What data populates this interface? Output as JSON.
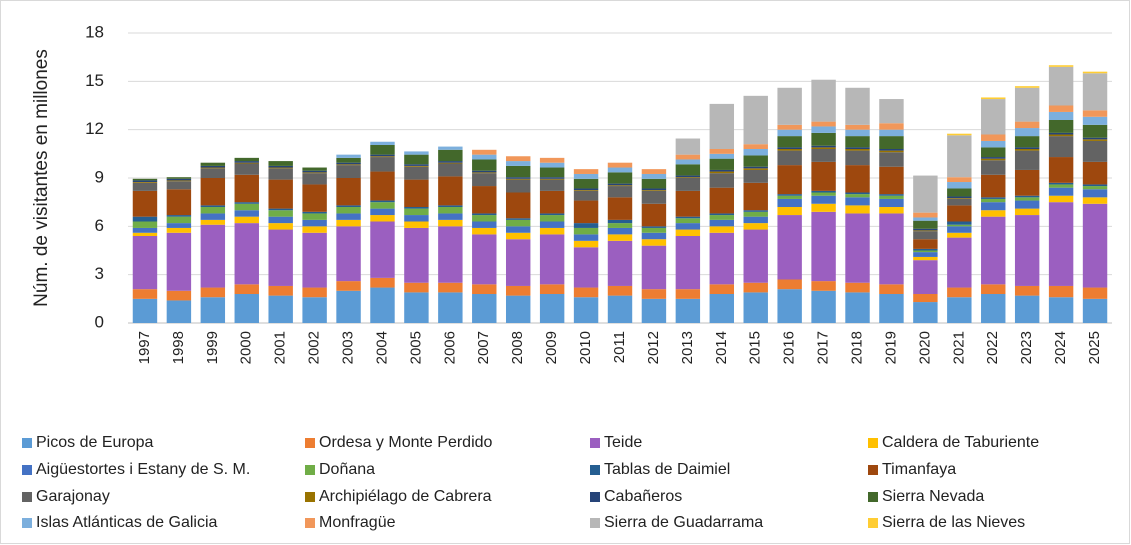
{
  "chart_data": {
    "type": "bar",
    "stacked": true,
    "y_label": "Núm. de visitantes en millones",
    "categories": [
      "1997",
      "1998",
      "1999",
      "2000",
      "2001",
      "2002",
      "2003",
      "2004",
      "2005",
      "2006",
      "2007",
      "2008",
      "2009",
      "2010",
      "2011",
      "2012",
      "2013",
      "2014",
      "2015",
      "2016",
      "2017",
      "2018",
      "2019",
      "2020",
      "2021",
      "2022",
      "2023",
      "2024",
      "2025"
    ],
    "ylim": [
      0,
      18
    ],
    "yticks": [
      0,
      3,
      6,
      9,
      12,
      15,
      18
    ],
    "grid": true,
    "legend": "bottom",
    "series": [
      {
        "name": "Picos de Europa",
        "color": "#5b9bd5",
        "values": [
          1.5,
          1.4,
          1.6,
          1.8,
          1.7,
          1.6,
          2.0,
          2.2,
          1.9,
          1.9,
          1.8,
          1.7,
          1.8,
          1.6,
          1.7,
          1.5,
          1.5,
          1.8,
          1.9,
          2.1,
          2.0,
          1.9,
          1.8,
          1.3,
          1.6,
          1.8,
          1.7,
          1.6,
          1.5
        ]
      },
      {
        "name": "Ordesa y Monte Perdido",
        "color": "#ed7d31",
        "values": [
          0.6,
          0.6,
          0.6,
          0.6,
          0.6,
          0.6,
          0.6,
          0.6,
          0.6,
          0.6,
          0.6,
          0.6,
          0.6,
          0.6,
          0.6,
          0.6,
          0.6,
          0.6,
          0.6,
          0.6,
          0.6,
          0.6,
          0.6,
          0.5,
          0.6,
          0.6,
          0.6,
          0.7,
          0.7
        ]
      },
      {
        "name": "Teide",
        "color": "#9b5fc0",
        "values": [
          3.3,
          3.6,
          3.9,
          3.8,
          3.5,
          3.4,
          3.4,
          3.5,
          3.4,
          3.5,
          3.1,
          2.9,
          3.1,
          2.5,
          2.8,
          2.7,
          3.3,
          3.2,
          3.3,
          4.0,
          4.3,
          4.3,
          4.4,
          2.1,
          3.1,
          4.2,
          4.4,
          5.2,
          5.2
        ]
      },
      {
        "name": "Caldera de Taburiente",
        "color": "#ffc000",
        "values": [
          0.2,
          0.3,
          0.3,
          0.4,
          0.4,
          0.4,
          0.4,
          0.4,
          0.4,
          0.4,
          0.4,
          0.4,
          0.4,
          0.4,
          0.4,
          0.4,
          0.4,
          0.4,
          0.4,
          0.5,
          0.5,
          0.5,
          0.4,
          0.2,
          0.3,
          0.4,
          0.4,
          0.4,
          0.4
        ]
      },
      {
        "name": "Aigüestortes i Estany de S. M.",
        "color": "#4472c4",
        "values": [
          0.3,
          0.3,
          0.4,
          0.4,
          0.4,
          0.4,
          0.4,
          0.4,
          0.4,
          0.4,
          0.4,
          0.4,
          0.4,
          0.4,
          0.4,
          0.4,
          0.4,
          0.4,
          0.4,
          0.5,
          0.5,
          0.5,
          0.5,
          0.3,
          0.4,
          0.5,
          0.5,
          0.5,
          0.5
        ]
      },
      {
        "name": "Doñana",
        "color": "#70ad47",
        "values": [
          0.4,
          0.4,
          0.4,
          0.4,
          0.4,
          0.4,
          0.4,
          0.4,
          0.4,
          0.4,
          0.4,
          0.4,
          0.4,
          0.4,
          0.3,
          0.3,
          0.3,
          0.3,
          0.3,
          0.2,
          0.2,
          0.2,
          0.2,
          0.1,
          0.1,
          0.2,
          0.2,
          0.2,
          0.2
        ]
      },
      {
        "name": "Tablas de Daimiel",
        "color": "#255e91",
        "values": [
          0.3,
          0.1,
          0.1,
          0.1,
          0.1,
          0.1,
          0.1,
          0.1,
          0.1,
          0.1,
          0.1,
          0.1,
          0.1,
          0.3,
          0.2,
          0.1,
          0.1,
          0.1,
          0.1,
          0.1,
          0.1,
          0.1,
          0.1,
          0.1,
          0.2,
          0.1,
          0.1,
          0.1,
          0.1
        ]
      },
      {
        "name": "Timanfaya",
        "color": "#9e480e",
        "values": [
          1.6,
          1.6,
          1.7,
          1.7,
          1.8,
          1.7,
          1.7,
          1.8,
          1.7,
          1.8,
          1.7,
          1.6,
          1.4,
          1.4,
          1.4,
          1.4,
          1.6,
          1.6,
          1.7,
          1.8,
          1.8,
          1.7,
          1.7,
          0.6,
          1.0,
          1.4,
          1.6,
          1.6,
          1.4
        ]
      },
      {
        "name": "Garajonay",
        "color": "#636363",
        "values": [
          0.5,
          0.5,
          0.6,
          0.7,
          0.7,
          0.7,
          0.8,
          0.9,
          0.8,
          0.8,
          0.8,
          0.8,
          0.7,
          0.6,
          0.7,
          0.8,
          0.8,
          0.9,
          0.8,
          0.9,
          0.8,
          0.9,
          0.9,
          0.5,
          0.4,
          0.9,
          1.2,
          1.3,
          1.3
        ]
      },
      {
        "name": "Archipiélago de Cabrera",
        "color": "#997300",
        "values": [
          0.05,
          0.05,
          0.05,
          0.05,
          0.05,
          0.05,
          0.05,
          0.05,
          0.05,
          0.05,
          0.05,
          0.05,
          0.05,
          0.05,
          0.05,
          0.05,
          0.05,
          0.1,
          0.1,
          0.1,
          0.1,
          0.1,
          0.1,
          0.05,
          0.05,
          0.1,
          0.1,
          0.1,
          0.1
        ]
      },
      {
        "name": "Cabañeros",
        "color": "#264478",
        "values": [
          0.1,
          0.1,
          0.1,
          0.1,
          0.1,
          0.1,
          0.1,
          0.1,
          0.1,
          0.1,
          0.1,
          0.1,
          0.1,
          0.1,
          0.1,
          0.1,
          0.1,
          0.1,
          0.1,
          0.1,
          0.1,
          0.1,
          0.1,
          0.1,
          0.1,
          0.1,
          0.1,
          0.1,
          0.1
        ]
      },
      {
        "name": "Sierra Nevada",
        "color": "#43682b",
        "values": [
          0.1,
          0.1,
          0.2,
          0.2,
          0.3,
          0.2,
          0.3,
          0.6,
          0.6,
          0.7,
          0.7,
          0.7,
          0.6,
          0.6,
          0.7,
          0.6,
          0.7,
          0.7,
          0.7,
          0.7,
          0.8,
          0.7,
          0.8,
          0.5,
          0.5,
          0.6,
          0.7,
          0.8,
          0.8
        ]
      },
      {
        "name": "Islas Atlánticas de Galicia",
        "color": "#7cafdd",
        "values": [
          0,
          0,
          0,
          0,
          0,
          0,
          0.2,
          0.2,
          0.2,
          0.2,
          0.3,
          0.3,
          0.3,
          0.3,
          0.3,
          0.3,
          0.3,
          0.3,
          0.4,
          0.4,
          0.4,
          0.4,
          0.4,
          0.2,
          0.4,
          0.4,
          0.5,
          0.5,
          0.5
        ]
      },
      {
        "name": "Monfragüe",
        "color": "#f1975a",
        "values": [
          0,
          0,
          0,
          0,
          0,
          0,
          0,
          0,
          0,
          0,
          0.3,
          0.3,
          0.3,
          0.3,
          0.3,
          0.3,
          0.3,
          0.3,
          0.3,
          0.3,
          0.3,
          0.3,
          0.4,
          0.3,
          0.3,
          0.4,
          0.4,
          0.4,
          0.4
        ]
      },
      {
        "name": "Sierra de Guadarrama",
        "color": "#b7b7b7",
        "values": [
          0,
          0,
          0,
          0,
          0,
          0,
          0,
          0,
          0,
          0,
          0,
          0,
          0,
          0,
          0,
          0,
          1.0,
          2.8,
          3.0,
          2.3,
          2.6,
          2.3,
          1.5,
          2.3,
          2.6,
          2.2,
          2.1,
          2.4,
          2.3
        ]
      },
      {
        "name": "Sierra de las Nieves",
        "color": "#ffcd33",
        "values": [
          0,
          0,
          0,
          0,
          0,
          0,
          0,
          0,
          0,
          0,
          0,
          0,
          0,
          0,
          0,
          0,
          0,
          0,
          0,
          0,
          0,
          0,
          0,
          0,
          0.1,
          0.1,
          0.1,
          0.1,
          0.1
        ]
      }
    ]
  }
}
